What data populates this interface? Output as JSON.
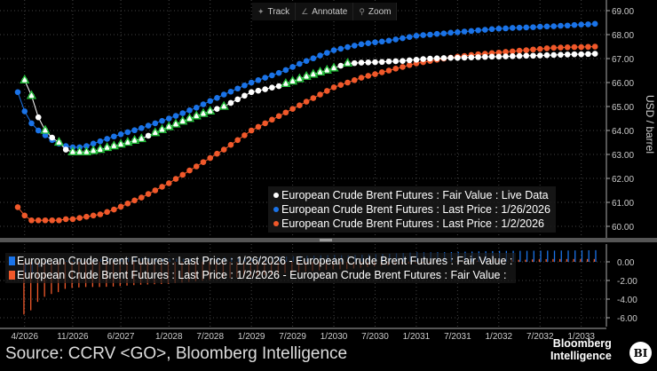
{
  "toolbar": {
    "track": "Track",
    "annotate": "Annotate",
    "zoom": "Zoom",
    "icons": {
      "track": "crosshair-icon",
      "annotate": "pencil-icon",
      "zoom": "magnifier-icon"
    }
  },
  "source": "Source: CCRV <GO>, Bloomberg Intelligence",
  "logo": {
    "line1": "Bloomberg",
    "line2": "Intelligence",
    "badge": "BI"
  },
  "colors": {
    "fair_value": "#ffffff",
    "last_0126": "#1a73e8",
    "last_0102": "#f0582a",
    "highlight": "#22c33a",
    "background": "#000000"
  },
  "chart_data": [
    {
      "type": "scatter",
      "panel": "top",
      "ylabel": "USD / barrel",
      "ylim": [
        59.6,
        69.2
      ],
      "yticks": [
        "60.00",
        "61.00",
        "62.00",
        "63.00",
        "64.00",
        "65.00",
        "66.00",
        "67.00",
        "68.00",
        "69.00"
      ],
      "xticks": [
        "4/2026",
        "11/2026",
        "6/2027",
        "1/2028",
        "7/2028",
        "1/2029",
        "7/2029",
        "1/2030",
        "7/2030",
        "1/2031",
        "7/2031",
        "1/2032",
        "7/2032",
        "1/2033"
      ],
      "x_start": "3/2026",
      "x_step": "1 month",
      "grid": true,
      "legend_placement": "bottom-right",
      "series": [
        {
          "name": "European Crude Brent Futures : Fair Value : Live Data",
          "color": "#ffffff",
          "values": [
            null,
            66.1,
            65.45,
            64.55,
            64.0,
            63.7,
            63.5,
            63.2,
            63.1,
            63.1,
            63.1,
            63.15,
            63.2,
            63.28,
            63.35,
            63.42,
            63.5,
            63.58,
            63.65,
            63.78,
            63.9,
            64.03,
            64.15,
            64.26,
            64.38,
            64.49,
            64.6,
            64.7,
            64.8,
            64.9,
            65.0,
            65.15,
            65.3,
            65.45,
            65.6,
            65.66,
            65.72,
            65.79,
            65.85,
            65.95,
            66.05,
            66.15,
            66.25,
            66.34,
            66.43,
            66.51,
            66.6,
            66.7,
            66.8,
            66.81,
            66.83,
            66.84,
            66.85,
            66.86,
            66.88,
            66.89,
            66.9,
            66.93,
            66.95,
            66.98,
            67.0,
            67.01,
            67.02,
            67.03,
            67.03,
            67.04,
            67.05,
            67.06,
            67.07,
            67.08,
            67.08,
            67.09,
            67.1,
            67.11,
            67.12,
            67.12,
            67.13,
            67.14,
            67.15,
            67.16,
            67.17,
            67.18,
            67.18,
            67.19,
            67.2
          ],
          "highlighted_indices": [
            1,
            2,
            4,
            6,
            8,
            9,
            10,
            11,
            12,
            13,
            14,
            15,
            16,
            17,
            18,
            20,
            21,
            22,
            23,
            24,
            25,
            26,
            27,
            28,
            30,
            39,
            40,
            41,
            42,
            43,
            44,
            45,
            46,
            48
          ]
        },
        {
          "name": "European Crude Brent Futures : Last Price : 1/26/2026",
          "color": "#1a73e8",
          "values": [
            65.6,
            64.8,
            64.3,
            64.0,
            63.8,
            63.6,
            63.45,
            63.35,
            63.3,
            63.3,
            63.35,
            63.45,
            63.55,
            63.65,
            63.75,
            63.84,
            63.93,
            64.01,
            64.1,
            64.2,
            64.3,
            64.4,
            64.5,
            64.61,
            64.72,
            64.84,
            64.95,
            65.09,
            65.23,
            65.36,
            65.5,
            65.62,
            65.75,
            65.88,
            66.0,
            66.1,
            66.2,
            66.3,
            66.4,
            66.52,
            66.65,
            66.78,
            66.9,
            67.01,
            67.13,
            67.24,
            67.35,
            67.41,
            67.48,
            67.54,
            67.6,
            67.64,
            67.68,
            67.71,
            67.75,
            67.8,
            67.85,
            67.9,
            67.95,
            67.98,
            68.0,
            68.03,
            68.05,
            68.08,
            68.1,
            68.13,
            68.15,
            68.18,
            68.2,
            68.23,
            68.25,
            68.26,
            68.28,
            68.29,
            68.3,
            68.31,
            68.33,
            68.34,
            68.35,
            68.37,
            68.38,
            68.4,
            68.42,
            68.43,
            68.45
          ]
        },
        {
          "name": "European Crude Brent Futures : Last Price : 1/2/2026",
          "color": "#f0582a",
          "values": [
            60.8,
            60.45,
            60.25,
            60.25,
            60.25,
            60.25,
            60.25,
            60.3,
            60.3,
            60.35,
            60.4,
            60.45,
            60.5,
            60.6,
            60.7,
            60.82,
            60.95,
            61.08,
            61.2,
            61.35,
            61.5,
            61.65,
            61.8,
            61.98,
            62.15,
            62.33,
            62.5,
            62.68,
            62.85,
            63.03,
            63.2,
            63.4,
            63.6,
            63.8,
            64.0,
            64.15,
            64.3,
            64.45,
            64.6,
            64.75,
            64.9,
            65.05,
            65.2,
            65.35,
            65.5,
            65.65,
            65.8,
            65.9,
            66.0,
            66.1,
            66.2,
            66.28,
            66.35,
            66.43,
            66.5,
            66.58,
            66.65,
            66.73,
            66.8,
            66.85,
            66.9,
            66.95,
            67.0,
            67.04,
            67.08,
            67.11,
            67.15,
            67.18,
            67.2,
            67.23,
            67.25,
            67.28,
            67.3,
            67.33,
            67.35,
            67.38,
            67.4,
            67.43,
            67.45,
            67.46,
            67.47,
            67.48,
            67.48,
            67.49,
            67.5
          ]
        }
      ]
    },
    {
      "type": "bar",
      "panel": "bottom",
      "ylim": [
        -6.4,
        1.6
      ],
      "yticks": [
        "-6.00",
        "-4.00",
        "-2.00",
        "0.00"
      ],
      "legend_placement": "top-left",
      "series": [
        {
          "name": "European Crude Brent Futures : Last Price : 1/26/2026 - European Crude Brent Futures : Fair Value :",
          "color": "#1a73e8",
          "derived": "Last Price 1/26/2026 minus Fair Value"
        },
        {
          "name": "European Crude Brent Futures : Last Price : 1/2/2026 - European Crude Brent Futures : Fair Value :",
          "color": "#f0582a",
          "derived": "Last Price 1/2/2026 minus Fair Value"
        }
      ]
    }
  ]
}
